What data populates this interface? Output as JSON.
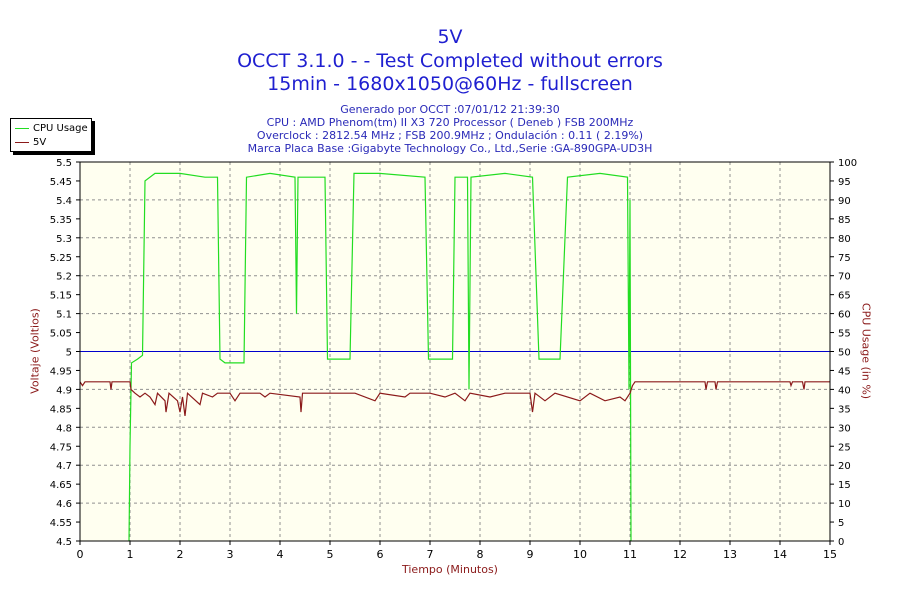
{
  "title": {
    "line1": "5V",
    "line2": "OCCT 3.1.0 -  - Test Completed without errors",
    "line3": "15min - 1680x1050@60Hz - fullscreen"
  },
  "info": {
    "generated": "Generado por OCCT :07/01/12 21:39:30",
    "cpu": "CPU : AMD Phenom(tm) II X3 720 Processor ( Deneb ) FSB 200MHz",
    "overclock": "Overclock : 2812.54 MHz ; FSB 200.9MHz ; Ondulación : 0.11 ( 2.19%)",
    "board": "Marca Placa Base :Gigabyte Technology Co., Ltd.,Serie :GA-890GPA-UD3H"
  },
  "colors": {
    "cpu": "#22dd22",
    "voltage": "#8b1a1a",
    "reference": "#0000cc",
    "plot_bg": "#fffff0",
    "grid": "#909090"
  },
  "chart_data": {
    "type": "line",
    "xlabel": "Tiempo (Minutos)",
    "ylabel_left": "Voltaje (Voltios)",
    "ylabel_right": "CPU Usage (in %)",
    "xlim": [
      0,
      15
    ],
    "ylim_left": [
      4.5,
      5.5
    ],
    "ylim_right": [
      0,
      100
    ],
    "x_ticks": [
      "0",
      "1",
      "2",
      "3",
      "4",
      "5",
      "6",
      "7",
      "8",
      "9",
      "10",
      "11",
      "12",
      "13",
      "14",
      "15"
    ],
    "y_ticks_left": [
      "4.5",
      "4.55",
      "4.6",
      "4.65",
      "4.7",
      "4.75",
      "4.8",
      "4.85",
      "4.9",
      "4.95",
      "5",
      "5.05",
      "5.1",
      "5.15",
      "5.2",
      "5.25",
      "5.3",
      "5.35",
      "5.4",
      "5.45",
      "5.5"
    ],
    "y_ticks_right": [
      "0",
      "5",
      "10",
      "15",
      "20",
      "25",
      "30",
      "35",
      "40",
      "45",
      "50",
      "55",
      "60",
      "65",
      "70",
      "75",
      "80",
      "85",
      "90",
      "95",
      "100"
    ],
    "grid": true,
    "legend": "top-left outside",
    "reference_line": 5.0,
    "series": [
      {
        "name": "CPU Usage",
        "axis": "right",
        "points": [
          [
            0.98,
            0
          ],
          [
            1.0,
            25
          ],
          [
            1.03,
            47
          ],
          [
            1.15,
            48
          ],
          [
            1.25,
            49
          ],
          [
            1.3,
            95
          ],
          [
            1.5,
            97
          ],
          [
            2.0,
            97
          ],
          [
            2.5,
            96
          ],
          [
            2.75,
            96
          ],
          [
            2.8,
            48
          ],
          [
            2.9,
            47
          ],
          [
            3.28,
            47
          ],
          [
            3.33,
            96
          ],
          [
            3.8,
            97
          ],
          [
            4.3,
            96
          ],
          [
            4.33,
            60
          ],
          [
            4.36,
            96
          ],
          [
            4.9,
            96
          ],
          [
            4.95,
            48
          ],
          [
            5.4,
            48
          ],
          [
            5.48,
            97
          ],
          [
            6.0,
            97
          ],
          [
            6.9,
            96
          ],
          [
            6.97,
            48
          ],
          [
            7.45,
            48
          ],
          [
            7.5,
            96
          ],
          [
            7.75,
            96
          ],
          [
            7.78,
            40
          ],
          [
            7.82,
            96
          ],
          [
            8.5,
            97
          ],
          [
            9.05,
            96
          ],
          [
            9.08,
            85
          ],
          [
            9.18,
            48
          ],
          [
            9.6,
            48
          ],
          [
            9.75,
            96
          ],
          [
            10.4,
            97
          ],
          [
            10.95,
            96
          ],
          [
            10.98,
            40
          ],
          [
            11.0,
            90
          ],
          [
            11.02,
            0
          ]
        ]
      },
      {
        "name": "5V",
        "axis": "left",
        "points": [
          [
            0.0,
            4.92
          ],
          [
            0.05,
            4.91
          ],
          [
            0.1,
            4.92
          ],
          [
            0.6,
            4.92
          ],
          [
            0.62,
            4.9
          ],
          [
            0.64,
            4.92
          ],
          [
            1.0,
            4.92
          ],
          [
            1.02,
            4.9
          ],
          [
            1.1,
            4.89
          ],
          [
            1.2,
            4.88
          ],
          [
            1.3,
            4.89
          ],
          [
            1.4,
            4.88
          ],
          [
            1.5,
            4.86
          ],
          [
            1.55,
            4.89
          ],
          [
            1.7,
            4.87
          ],
          [
            1.72,
            4.84
          ],
          [
            1.78,
            4.89
          ],
          [
            1.95,
            4.87
          ],
          [
            2.0,
            4.84
          ],
          [
            2.05,
            4.88
          ],
          [
            2.1,
            4.83
          ],
          [
            2.15,
            4.89
          ],
          [
            2.4,
            4.86
          ],
          [
            2.45,
            4.89
          ],
          [
            2.65,
            4.88
          ],
          [
            2.75,
            4.89
          ],
          [
            3.0,
            4.89
          ],
          [
            3.1,
            4.87
          ],
          [
            3.2,
            4.89
          ],
          [
            3.6,
            4.89
          ],
          [
            3.7,
            4.88
          ],
          [
            3.8,
            4.89
          ],
          [
            4.4,
            4.88
          ],
          [
            4.42,
            4.84
          ],
          [
            4.45,
            4.89
          ],
          [
            5.0,
            4.89
          ],
          [
            5.5,
            4.89
          ],
          [
            5.9,
            4.87
          ],
          [
            6.0,
            4.89
          ],
          [
            6.5,
            4.88
          ],
          [
            6.6,
            4.89
          ],
          [
            7.0,
            4.89
          ],
          [
            7.3,
            4.88
          ],
          [
            7.5,
            4.89
          ],
          [
            7.7,
            4.87
          ],
          [
            7.8,
            4.89
          ],
          [
            8.2,
            4.88
          ],
          [
            8.5,
            4.89
          ],
          [
            9.0,
            4.89
          ],
          [
            9.05,
            4.84
          ],
          [
            9.1,
            4.89
          ],
          [
            9.3,
            4.87
          ],
          [
            9.5,
            4.89
          ],
          [
            10.0,
            4.87
          ],
          [
            10.2,
            4.89
          ],
          [
            10.5,
            4.87
          ],
          [
            10.8,
            4.88
          ],
          [
            10.9,
            4.87
          ],
          [
            11.0,
            4.89
          ],
          [
            11.05,
            4.91
          ],
          [
            11.1,
            4.92
          ],
          [
            12.5,
            4.92
          ],
          [
            12.52,
            4.9
          ],
          [
            12.55,
            4.92
          ],
          [
            12.7,
            4.92
          ],
          [
            12.72,
            4.9
          ],
          [
            12.75,
            4.92
          ],
          [
            14.2,
            4.92
          ],
          [
            14.22,
            4.91
          ],
          [
            14.25,
            4.92
          ],
          [
            14.45,
            4.92
          ],
          [
            14.48,
            4.9
          ],
          [
            14.5,
            4.92
          ],
          [
            15.0,
            4.92
          ]
        ]
      }
    ]
  }
}
